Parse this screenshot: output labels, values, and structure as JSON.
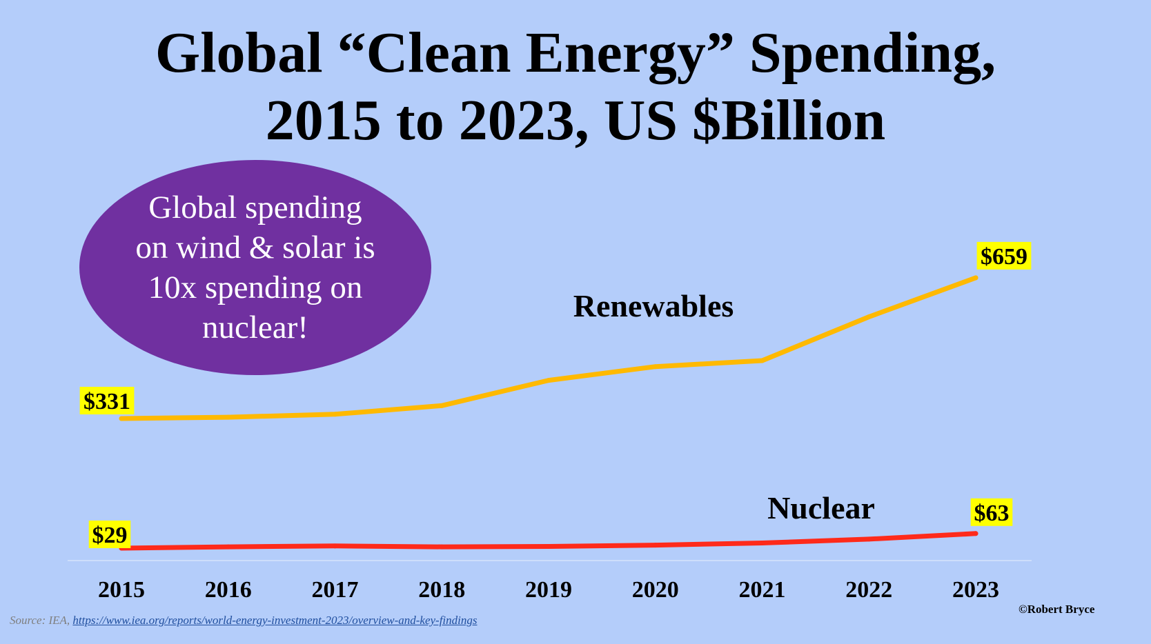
{
  "colors": {
    "background": "#b4cdfa",
    "renewables_line": "#ffb900",
    "nuclear_line": "#ff2a1a",
    "callout_fill": "#7030a0",
    "value_label_bg": "#ffff00"
  },
  "callout_text": "Global spending on wind & solar is 10x spending on nuclear!",
  "source": {
    "prefix": "Source: IEA, ",
    "link_text": "https://www.iea.org/reports/world-energy-investment-2023/overview-and-key-findings"
  },
  "copyright": "©Robert Bryce",
  "chart_data": {
    "type": "line",
    "title": "Global “Clean Energy” Spending, 2015 to 2023, US $Billion",
    "title_lines": [
      "Global “Clean Energy” Spending,",
      "2015 to 2023, US $Billion"
    ],
    "xlabel": "",
    "ylabel": "",
    "categories": [
      "2015",
      "2016",
      "2017",
      "2018",
      "2019",
      "2020",
      "2021",
      "2022",
      "2023"
    ],
    "ylim": [
      0,
      720
    ],
    "grid": false,
    "legend": "none",
    "series": [
      {
        "name": "Renewables",
        "color": "#ffb900",
        "values": [
          331,
          334,
          341,
          361,
          420,
          452,
          466,
          568,
          659
        ],
        "end_labels": [
          "$331",
          "$659"
        ]
      },
      {
        "name": "Nuclear",
        "color": "#ff2a1a",
        "values": [
          29,
          32,
          34,
          32,
          33,
          36,
          41,
          50,
          63
        ],
        "end_labels": [
          "$29",
          "$63"
        ]
      }
    ]
  }
}
